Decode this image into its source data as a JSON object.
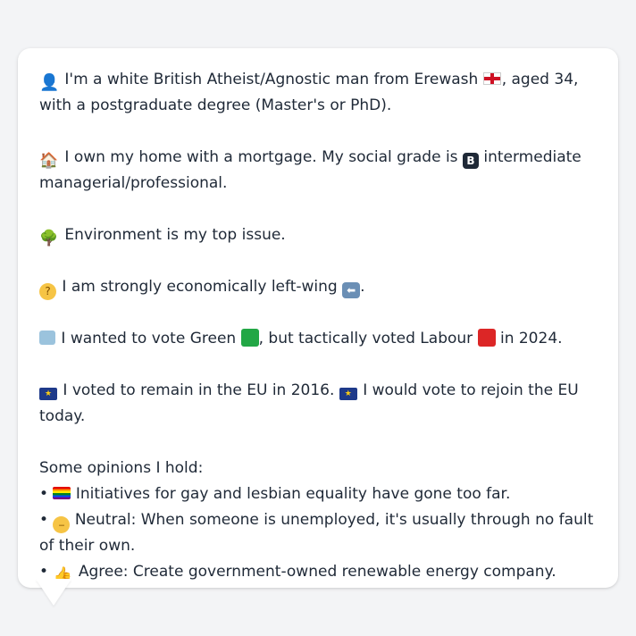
{
  "bubble": {
    "paragraphs": [
      {
        "emoji": "bust-in-silhouette-icon",
        "before": "I'm a white British Atheist/Agnostic man from Erewash",
        "flag": "england-flag-icon",
        "after": ", aged 34, with a postgraduate degree (Master's or PhD)."
      },
      {
        "emoji": "house-icon",
        "before": "I own my home with a mortgage. My social grade is",
        "badge": "B",
        "after": "intermediate managerial/professional."
      },
      {
        "emoji": "deciduous-tree-icon",
        "text": "Environment is my top issue."
      },
      {
        "emoji": "thinking-face-icon",
        "before": "I am strongly economically left-wing",
        "arrow": "⬅",
        "after": "."
      },
      {
        "emoji": "ballot-box-icon",
        "before": "I wanted to vote Green",
        "green_color": "#22a745",
        "middle": ", but tactically voted Labour",
        "labour_color": "#dc2626",
        "after": "in 2024."
      },
      {
        "emoji": "eu-flag-icon",
        "part1": "I voted to remain in the EU in 2016.",
        "part2": "I would vote to rejoin the EU today."
      }
    ],
    "opinions_heading": "Some opinions I hold:",
    "bullet": "•",
    "opinions": [
      {
        "emoji": "rainbow-flag-icon",
        "text": "Initiatives for gay and lesbian equality have gone too far."
      },
      {
        "emoji": "neutral-face-icon",
        "text": "Neutral: When someone is unemployed, it's usually through no fault of their own."
      },
      {
        "emoji": "thumbs-up-icon",
        "text": "Agree: Create government-owned renewable energy company."
      }
    ]
  }
}
